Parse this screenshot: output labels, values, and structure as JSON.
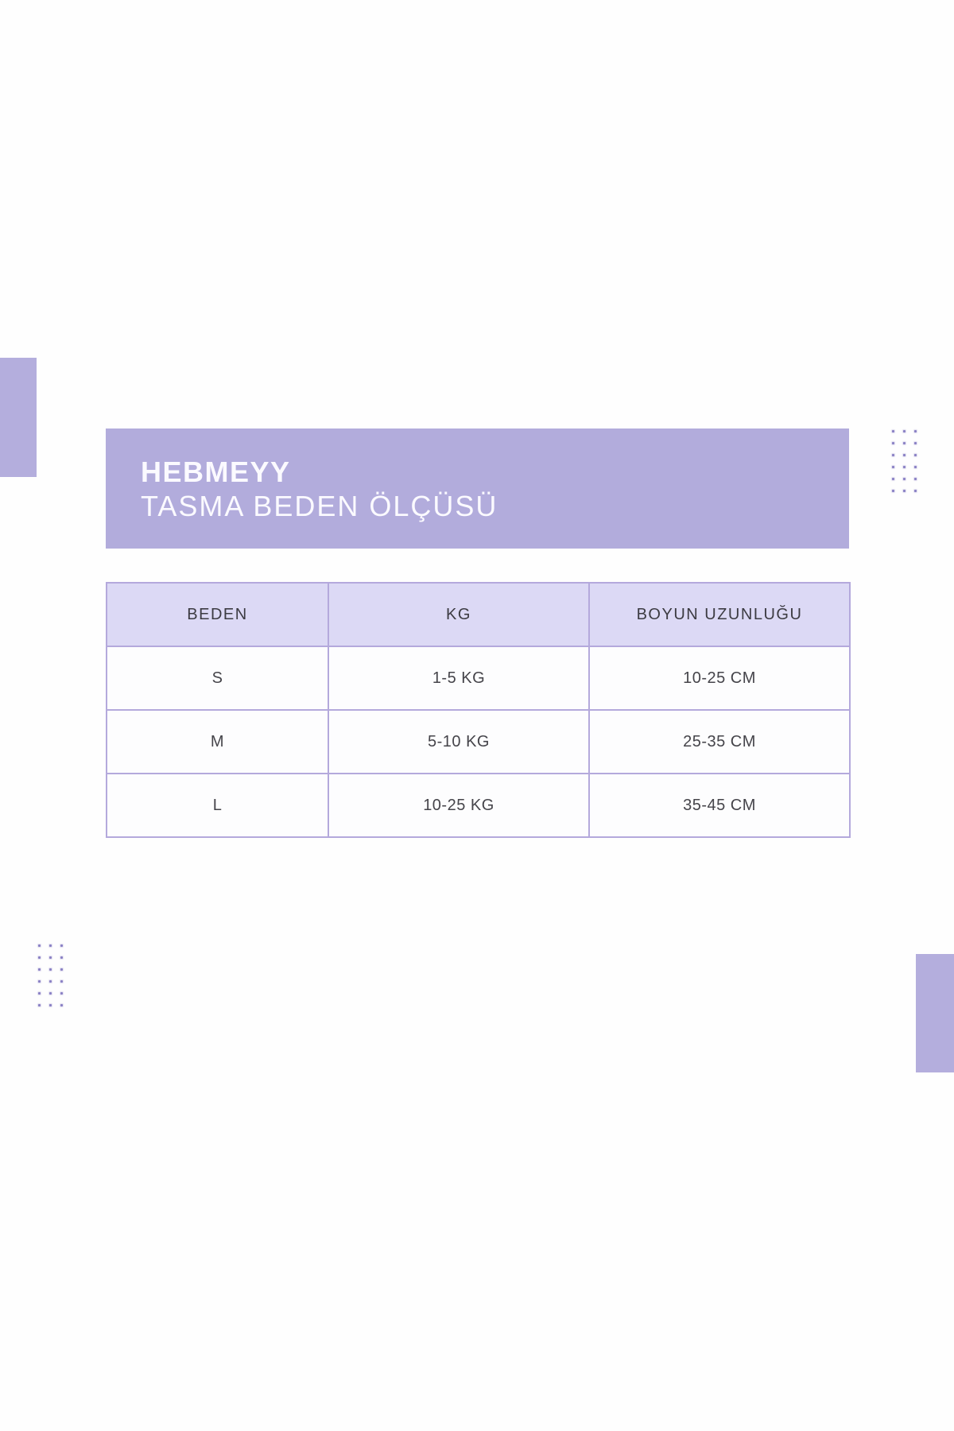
{
  "banner": {
    "brand": "HEBMEYY",
    "subtitle": "TASMA BEDEN ÖLÇÜSÜ",
    "bg_color": "#b2acdc",
    "text_color": "#fbfaff"
  },
  "size_table": {
    "headers": [
      "BEDEN",
      "KG",
      "BOYUN UZUNLUĞU"
    ],
    "rows": [
      [
        "S",
        "1-5 KG",
        "10-25 CM"
      ],
      [
        "M",
        "5-10 KG",
        "25-35 CM"
      ],
      [
        "L",
        "10-25 KG",
        "35-45 CM"
      ]
    ],
    "header_bg_color": "#dcd9f5",
    "border_color": "#b4a9dc",
    "text_color": "#45444a"
  },
  "decor": {
    "square_color": "#b4aedd",
    "dot_color": "#8a81c5",
    "dot_grid": {
      "columns": 3,
      "rows": 6
    }
  }
}
